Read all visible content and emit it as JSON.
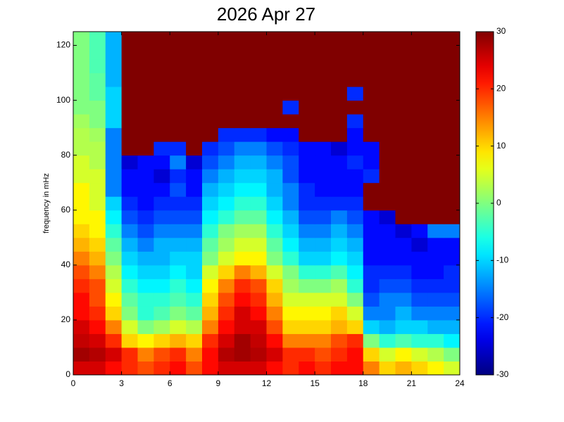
{
  "chart_data": {
    "type": "heatmap",
    "title": "2026 Apr 27",
    "y_label": "frequency in mHz",
    "x": [
      0.5,
      1.5,
      2.5,
      3.5,
      4.5,
      5.5,
      6.5,
      7.5,
      8.5,
      9.5,
      10.5,
      11.5,
      12.5,
      13.5,
      14.5,
      15.5,
      16.5,
      17.5,
      18.5,
      19.5,
      20.5,
      21.5,
      22.5,
      23.5
    ],
    "y": [
      2.5,
      7.5,
      12.5,
      17.5,
      22.5,
      27.5,
      32.5,
      37.5,
      42.5,
      47.5,
      52.5,
      57.5,
      62.5,
      67.5,
      72.5,
      77.5,
      82.5,
      87.5,
      92.5,
      97.5,
      102.5,
      107.5,
      112.5,
      117.5,
      122.5
    ],
    "z": [
      [
        25,
        25,
        22,
        20,
        18,
        20,
        22,
        18,
        22,
        25,
        25,
        25,
        22,
        20,
        22,
        20,
        22,
        22,
        15,
        10,
        12,
        10,
        8,
        5
      ],
      [
        28,
        27,
        25,
        20,
        15,
        18,
        20,
        15,
        22,
        27,
        28,
        27,
        25,
        20,
        20,
        18,
        20,
        22,
        10,
        5,
        8,
        5,
        3,
        0
      ],
      [
        26,
        25,
        20,
        10,
        8,
        10,
        12,
        10,
        20,
        25,
        28,
        26,
        22,
        15,
        15,
        15,
        18,
        20,
        0,
        -5,
        -3,
        -5,
        -5,
        -8
      ],
      [
        25,
        22,
        15,
        5,
        0,
        2,
        5,
        3,
        15,
        22,
        25,
        25,
        18,
        10,
        10,
        10,
        12,
        10,
        -10,
        -12,
        -10,
        -10,
        -12,
        -12
      ],
      [
        22,
        20,
        10,
        0,
        -5,
        -3,
        0,
        -2,
        12,
        20,
        25,
        22,
        15,
        8,
        8,
        8,
        10,
        5,
        -15,
        -15,
        -12,
        -15,
        -15,
        -15
      ],
      [
        22,
        18,
        8,
        -2,
        -5,
        -5,
        -3,
        -5,
        10,
        18,
        22,
        20,
        12,
        5,
        5,
        5,
        5,
        0,
        -18,
        -15,
        -15,
        -18,
        -18,
        -18
      ],
      [
        20,
        18,
        5,
        -5,
        -8,
        -8,
        -5,
        -8,
        8,
        15,
        20,
        18,
        10,
        2,
        0,
        0,
        2,
        -5,
        -20,
        -18,
        -18,
        -20,
        -20,
        -20
      ],
      [
        18,
        15,
        3,
        -8,
        -10,
        -10,
        -8,
        -10,
        5,
        10,
        15,
        12,
        5,
        0,
        -5,
        -5,
        -3,
        -8,
        -20,
        -20,
        -20,
        -22,
        -22,
        -20
      ],
      [
        15,
        12,
        0,
        -10,
        -12,
        -12,
        -10,
        -10,
        0,
        5,
        8,
        8,
        0,
        -5,
        -10,
        -10,
        -8,
        -10,
        -22,
        -22,
        -22,
        -22,
        -22,
        -22
      ],
      [
        12,
        10,
        -2,
        -12,
        -15,
        -12,
        -12,
        -12,
        -2,
        2,
        5,
        5,
        -2,
        -8,
        -12,
        -12,
        -10,
        -12,
        -22,
        -22,
        -22,
        -25,
        -22,
        -22
      ],
      [
        10,
        8,
        -5,
        -15,
        -18,
        -15,
        -15,
        -15,
        -5,
        0,
        2,
        2,
        -5,
        -10,
        -15,
        -15,
        -12,
        -15,
        -22,
        -22,
        -25,
        -22,
        -15,
        -15
      ],
      [
        8,
        8,
        -8,
        -18,
        -20,
        -18,
        -18,
        -18,
        -8,
        -5,
        -2,
        -2,
        -8,
        -12,
        -18,
        -18,
        -15,
        -18,
        -22,
        -25,
        30,
        30,
        30,
        30
      ],
      [
        8,
        5,
        -10,
        -20,
        -22,
        -20,
        -20,
        -20,
        -10,
        -8,
        -5,
        -5,
        -10,
        -15,
        -20,
        -20,
        -20,
        -20,
        30,
        30,
        30,
        30,
        30,
        30
      ],
      [
        8,
        5,
        -15,
        -22,
        -22,
        -22,
        -18,
        -22,
        -12,
        -10,
        -8,
        -8,
        -12,
        -15,
        -20,
        -22,
        -22,
        -22,
        30,
        30,
        30,
        30,
        30,
        30
      ],
      [
        5,
        5,
        -15,
        -22,
        -22,
        -25,
        -20,
        -22,
        -15,
        -12,
        -10,
        -10,
        -12,
        -18,
        -22,
        -22,
        -22,
        -22,
        -20,
        30,
        30,
        30,
        30,
        30
      ],
      [
        5,
        3,
        -15,
        -25,
        -22,
        -22,
        -15,
        -25,
        -18,
        -15,
        -12,
        -12,
        -15,
        -18,
        -22,
        -22,
        -22,
        -20,
        -22,
        30,
        30,
        30,
        30,
        30
      ],
      [
        3,
        3,
        -15,
        30,
        30,
        -20,
        -20,
        30,
        -20,
        -18,
        -15,
        -15,
        -18,
        -20,
        -22,
        -22,
        -25,
        -22,
        -22,
        30,
        30,
        30,
        30,
        30
      ],
      [
        3,
        2,
        -15,
        30,
        30,
        30,
        30,
        30,
        30,
        -20,
        -20,
        -20,
        -22,
        -22,
        30,
        30,
        30,
        -22,
        30,
        30,
        30,
        30,
        30,
        30
      ],
      [
        2,
        0,
        -10,
        30,
        30,
        30,
        30,
        30,
        30,
        30,
        30,
        30,
        30,
        30,
        30,
        30,
        30,
        -20,
        30,
        30,
        30,
        30,
        30,
        30
      ],
      [
        0,
        0,
        -10,
        30,
        30,
        30,
        30,
        30,
        30,
        30,
        30,
        30,
        30,
        -20,
        30,
        30,
        30,
        30,
        30,
        30,
        30,
        30,
        30,
        30
      ],
      [
        0,
        -2,
        -10,
        30,
        30,
        30,
        30,
        30,
        30,
        30,
        30,
        30,
        30,
        30,
        30,
        30,
        30,
        -20,
        30,
        30,
        30,
        30,
        30,
        30
      ],
      [
        0,
        -2,
        -12,
        30,
        30,
        30,
        30,
        30,
        30,
        30,
        30,
        30,
        30,
        30,
        30,
        30,
        30,
        30,
        30,
        30,
        30,
        30,
        30,
        30
      ],
      [
        0,
        -3,
        -12,
        30,
        30,
        30,
        30,
        30,
        30,
        30,
        30,
        30,
        30,
        30,
        30,
        30,
        30,
        30,
        30,
        30,
        30,
        30,
        30,
        30
      ],
      [
        0,
        -3,
        -12,
        30,
        30,
        30,
        30,
        30,
        30,
        30,
        30,
        30,
        30,
        30,
        30,
        30,
        30,
        30,
        30,
        30,
        30,
        30,
        30,
        30
      ],
      [
        0,
        -3,
        -12,
        30,
        30,
        30,
        30,
        30,
        30,
        30,
        30,
        30,
        30,
        30,
        30,
        30,
        30,
        30,
        30,
        30,
        30,
        30,
        30,
        30
      ]
    ],
    "xlim": [
      0,
      24
    ],
    "xticks": [
      0,
      3,
      6,
      9,
      12,
      15,
      18,
      21,
      24
    ],
    "ylim": [
      0,
      125
    ],
    "yticks": [
      0,
      20,
      40,
      60,
      80,
      100,
      120
    ],
    "colormap": "jet",
    "clim": [
      -30,
      30
    ],
    "cticks": [
      -30,
      -20,
      -10,
      0,
      10,
      20,
      30
    ]
  }
}
